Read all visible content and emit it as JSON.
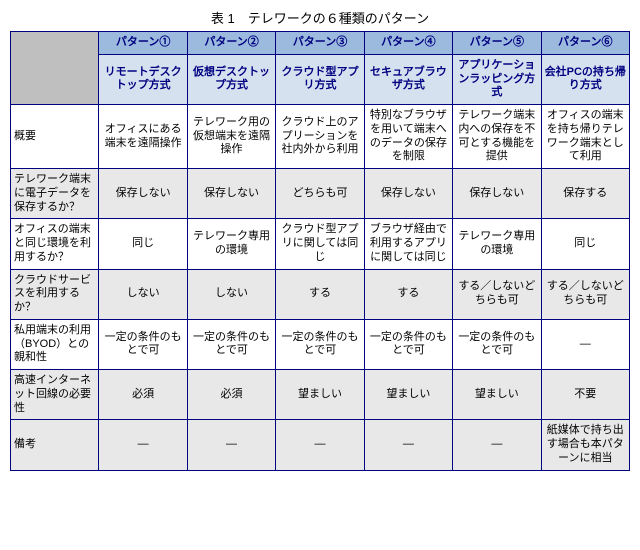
{
  "title": "表 1　テレワークの６種類のパターン",
  "colors": {
    "border": "#000080",
    "pattern_header_bg": "#9bbadd",
    "pattern_header_fg": "#000080",
    "method_bg": "#d6e1f0",
    "method_fg": "#000080",
    "rowhead_grey": "#e8e8e8",
    "corner_bg": "#bfbfbf",
    "white": "#ffffff"
  },
  "columns": {
    "layout": [
      "row_header",
      "p1",
      "p2",
      "p3",
      "p4",
      "p5",
      "p6"
    ],
    "pattern_labels": [
      "パターン①",
      "パターン②",
      "パターン③",
      "パターン④",
      "パターン⑤",
      "パターン⑥"
    ],
    "method_names": [
      "リモートデスクトップ方式",
      "仮想デスクトップ方式",
      "クラウド型アプリ方式",
      "セキュアブラウザ方式",
      "アプリケーションラッピング方式",
      "会社PCの持ち帰り方式"
    ]
  },
  "rows": [
    {
      "header": "概要",
      "shade": "white",
      "cells": [
        "オフィスにある端末を遠隔操作",
        "テレワーク用の仮想端末を遠隔操作",
        "クラウド上のアプリーションを社内外から利用",
        "特別なブラウザを用いて端末へのデータの保存を制限",
        "テレワーク端末内への保存を不可とする機能を提供",
        "オフィスの端末を持ち帰りテレワーク端末として利用"
      ]
    },
    {
      "header": "テレワーク端末に電子データを保存するか？",
      "shade": "grey",
      "cells": [
        "保存しない",
        "保存しない",
        "どちらも可",
        "保存しない",
        "保存しない",
        "保存する"
      ]
    },
    {
      "header": "オフィスの端末と同じ環境を利用するか？",
      "shade": "white",
      "cells": [
        "同じ",
        "テレワーク専用の環境",
        "クラウド型アプリに関しては同じ",
        "ブラウザ経由で利用するアプリに関しては同じ",
        "テレワーク専用の環境",
        "同じ"
      ]
    },
    {
      "header": "クラウドサービスを利用するか？",
      "shade": "grey",
      "cells": [
        "しない",
        "しない",
        "する",
        "する",
        "する／しないどちらも可",
        "する／しないどちらも可"
      ]
    },
    {
      "header": "私用端末の利用（BYOD）との親和性",
      "shade": "white",
      "cells": [
        "一定の条件のもとで可",
        "一定の条件のもとで可",
        "一定の条件のもとで可",
        "一定の条件のもとで可",
        "一定の条件のもとで可",
        "—"
      ]
    },
    {
      "header": "高速インターネット回線の必要性",
      "shade": "grey",
      "cells": [
        "必須",
        "必須",
        "望ましい",
        "望ましい",
        "望ましい",
        "不要"
      ]
    },
    {
      "header": "備考",
      "shade": "grey",
      "cells": [
        "—",
        "—",
        "—",
        "—",
        "—",
        "紙媒体で持ち出す場合も本パターンに相当"
      ]
    }
  ]
}
